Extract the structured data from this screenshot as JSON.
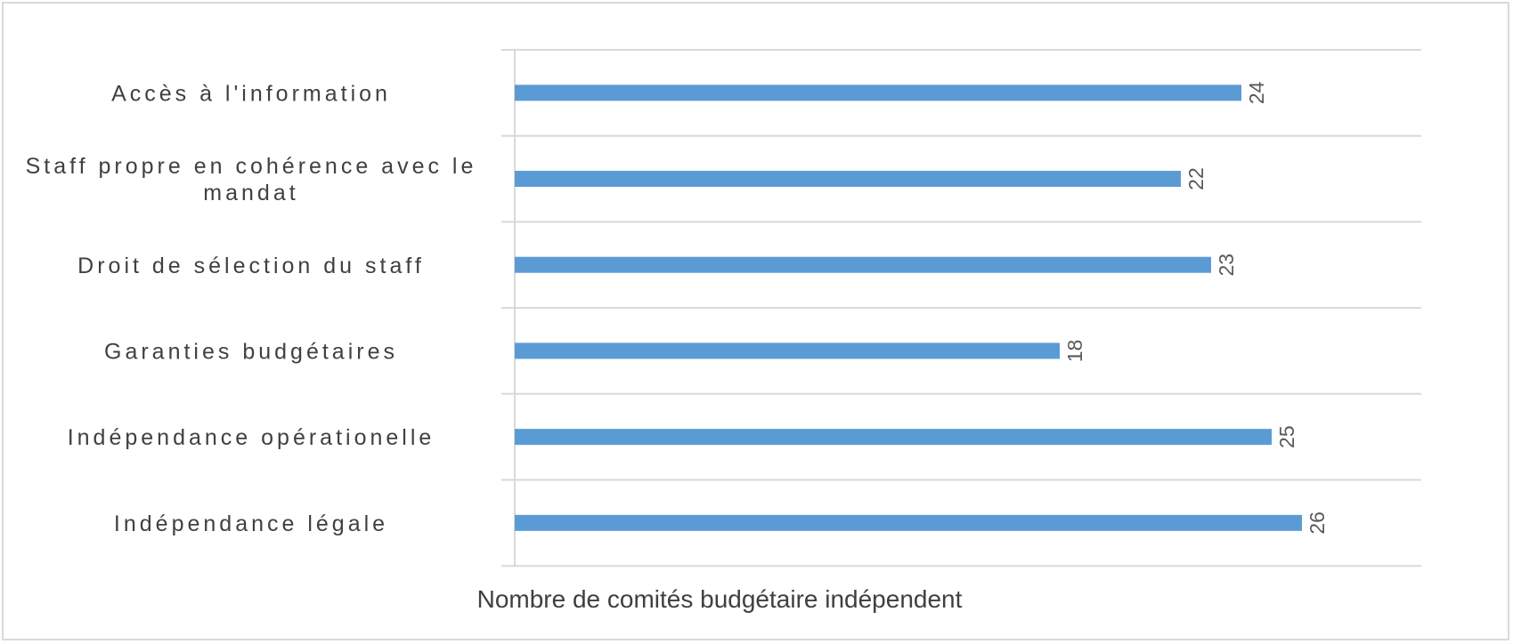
{
  "chart_data": {
    "type": "bar",
    "orientation": "horizontal",
    "categories": [
      "Accès à l'information",
      "Staff propre en cohérence avec le mandat",
      "Droit de sélection du staff",
      "Garanties budgétaires",
      "Indépendance opérationelle",
      "Indépendance légale"
    ],
    "category_lines": [
      [
        "Accès à l'information"
      ],
      [
        "Staff propre en cohérence avec le",
        "mandat"
      ],
      [
        "Droit de sélection du staff"
      ],
      [
        "Garanties budgétaires"
      ],
      [
        "Indépendance opérationelle"
      ],
      [
        "Indépendance légale"
      ]
    ],
    "values": [
      24,
      22,
      23,
      18,
      25,
      26
    ],
    "value_labels": [
      "24",
      "22",
      "23",
      "18",
      "25",
      "26"
    ],
    "xlabel": "Nombre de comités budgétaire indépendent",
    "ylabel": "",
    "title": "",
    "xlim": [
      0,
      30
    ],
    "grid": "horizontal lines between categories",
    "legend": "none",
    "bar_color": "#5b9bd5",
    "grid_color": "#d9d9d9"
  }
}
